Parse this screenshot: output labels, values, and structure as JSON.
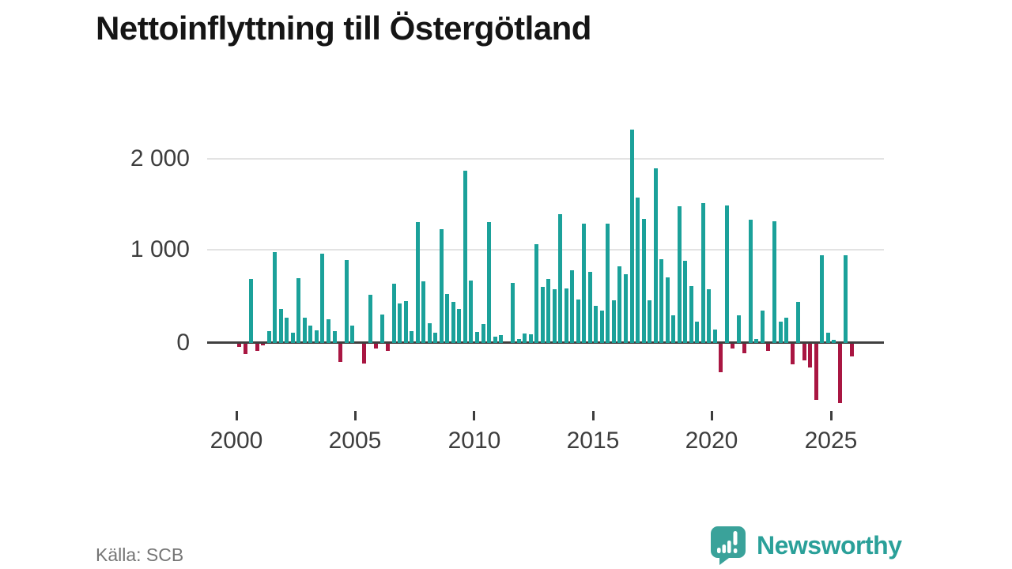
{
  "title": "Nettoinflyttning till Östergötland",
  "source": "Källa: SCB",
  "logo": {
    "text": "Newsworthy",
    "icon": "speech-bubble-with-bar-chart-and-exclamation"
  },
  "colors": {
    "positive_bar": "#1ba19a",
    "negative_bar": "#a91642",
    "axis": "#3f3f3f",
    "tick_text": "#3d3d3d",
    "grid": "#e3e3e3",
    "title_text": "#151515",
    "source_text": "#757575",
    "logo_teal": "#2aa099"
  },
  "chart_data": {
    "type": "bar",
    "title": "Nettoinflyttning till Östergötland",
    "frequency": "quarterly",
    "start": "2000 Q1",
    "end": "2025 Q4",
    "start_year": 2000,
    "quarters_per_year": 4,
    "grid": "horizontal",
    "ylim": [
      -700,
      2400
    ],
    "y_tick_values": [
      2000,
      1000,
      0
    ],
    "y_tick_labels": [
      "2 000",
      "1 000",
      "0"
    ],
    "x_tick_labels": [
      "2000",
      "2005",
      "2010",
      "2015",
      "2020",
      "2025"
    ],
    "series_name": "Nettoinflyttning",
    "values": [
      -35,
      -115,
      690,
      -80,
      -20,
      130,
      985,
      370,
      270,
      110,
      700,
      270,
      185,
      135,
      970,
      260,
      130,
      -195,
      900,
      190,
      0,
      -215,
      525,
      -55,
      310,
      -75,
      640,
      425,
      455,
      125,
      1310,
      670,
      215,
      110,
      1230,
      530,
      445,
      370,
      1870,
      680,
      120,
      205,
      1315,
      70,
      85,
      0,
      650,
      45,
      100,
      90,
      1075,
      610,
      690,
      580,
      1400,
      590,
      785,
      470,
      1290,
      770,
      405,
      355,
      1290,
      460,
      835,
      745,
      2310,
      1580,
      1345,
      460,
      1895,
      910,
      715,
      300,
      1480,
      895,
      615,
      230,
      1520,
      585,
      145,
      -310,
      1490,
      -55,
      300,
      -105,
      1340,
      40,
      355,
      -80,
      1320,
      235,
      270,
      -220,
      445,
      -180,
      -260,
      -610,
      955,
      115,
      30,
      -645,
      950,
      -135
    ]
  }
}
